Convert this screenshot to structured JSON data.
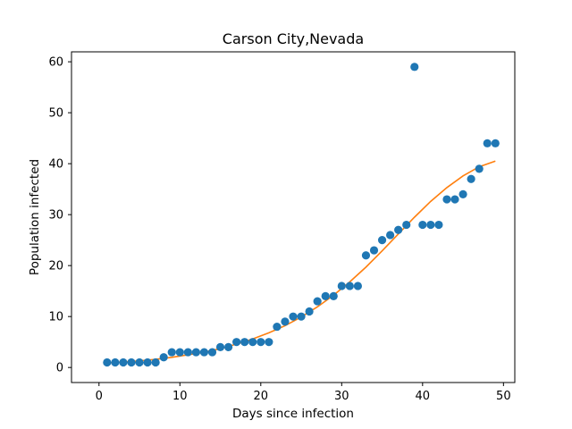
{
  "chart_data": {
    "type": "scatter",
    "title": "Carson City,Nevada",
    "xlabel": "Days since infection",
    "ylabel": "Population infected",
    "xlim": [
      -3.4,
      51.4
    ],
    "ylim": [
      -2.95,
      61.95
    ],
    "xticks": [
      0,
      10,
      20,
      30,
      40,
      50
    ],
    "yticks": [
      0,
      10,
      20,
      30,
      40,
      50,
      60
    ],
    "grid": false,
    "colors": {
      "points": "#1f77b4",
      "fit": "#ff7f0e"
    },
    "series": [
      {
        "kind": "points",
        "x": [
          1,
          2,
          3,
          4,
          5,
          6,
          7,
          8,
          9,
          10,
          11,
          12,
          13,
          14,
          15,
          16,
          17,
          18,
          19,
          20,
          21,
          22,
          23,
          24,
          25,
          26,
          27,
          28,
          29,
          30,
          31,
          32,
          33,
          34,
          35,
          36,
          37,
          38,
          39,
          40,
          41,
          42,
          43,
          44,
          45,
          46,
          47,
          48,
          49
        ],
        "y": [
          1,
          1,
          1,
          1,
          1,
          1,
          1,
          2,
          3,
          3,
          3,
          3,
          3,
          3,
          4,
          4,
          5,
          5,
          5,
          5,
          5,
          8,
          9,
          10,
          10,
          11,
          13,
          14,
          14,
          16,
          16,
          16,
          22,
          23,
          25,
          26,
          27,
          28,
          59,
          28,
          28,
          28,
          33,
          33,
          34,
          37,
          39,
          44,
          44
        ]
      },
      {
        "kind": "fit",
        "x": [
          1,
          3,
          5,
          7,
          9,
          11,
          13,
          15,
          17,
          19,
          21,
          23,
          25,
          27,
          29,
          31,
          33,
          35,
          37,
          39,
          41,
          43,
          45,
          47,
          49
        ],
        "y": [
          0.9,
          1.1,
          1.3,
          1.6,
          2.0,
          2.5,
          3.0,
          3.7,
          4.6,
          5.6,
          6.8,
          8.2,
          9.9,
          11.9,
          14.2,
          16.8,
          19.7,
          22.9,
          26.2,
          29.5,
          32.6,
          35.3,
          37.6,
          39.4,
          40.5
        ]
      }
    ]
  }
}
